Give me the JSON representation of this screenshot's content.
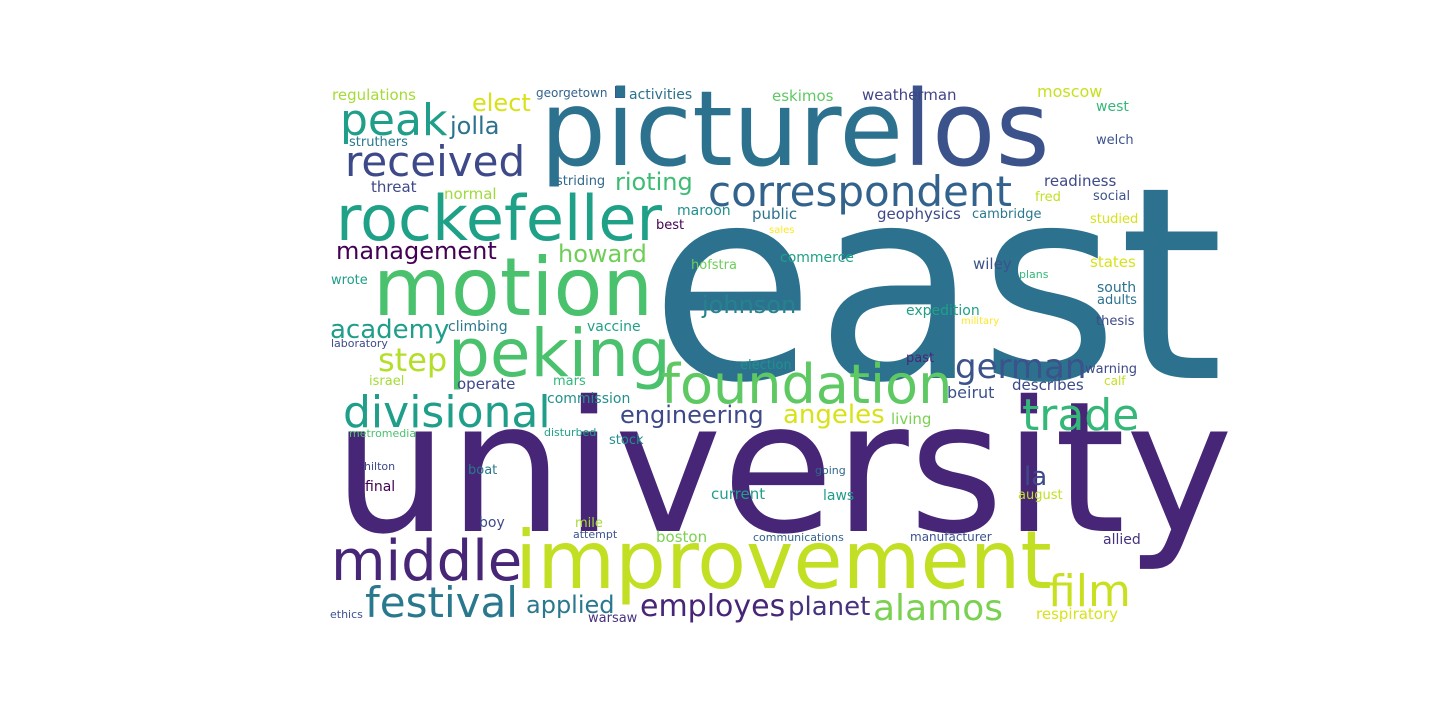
{
  "cloud": {
    "words": [
      {
        "text": "east",
        "color": "#2c728e"
      },
      {
        "text": "university",
        "color": "#482677"
      },
      {
        "text": "picture",
        "color": "#2c728e"
      },
      {
        "text": "los",
        "color": "#3b528b"
      },
      {
        "text": "improvement",
        "color": "#c2df23"
      },
      {
        "text": "motion",
        "color": "#4ac16d"
      },
      {
        "text": "rockefeller",
        "color": "#1fa187"
      },
      {
        "text": "peking",
        "color": "#4ac16d"
      },
      {
        "text": "foundation",
        "color": "#5ec962"
      },
      {
        "text": "middle",
        "color": "#482677"
      },
      {
        "text": "divisional",
        "color": "#1f9e89"
      },
      {
        "text": "correspondent",
        "color": "#33638d"
      },
      {
        "text": "received",
        "color": "#3e4989"
      },
      {
        "text": "peak",
        "color": "#1f9e89"
      },
      {
        "text": "festival",
        "color": "#2a788e"
      },
      {
        "text": "trade",
        "color": "#35b779"
      },
      {
        "text": "film",
        "color": "#c8e020"
      },
      {
        "text": "alamos",
        "color": "#7ad151"
      },
      {
        "text": "german",
        "color": "#3b528b"
      },
      {
        "text": "step",
        "color": "#b5de2b"
      },
      {
        "text": "employes",
        "color": "#482677"
      },
      {
        "text": "angeles",
        "color": "#d8e219"
      },
      {
        "text": "planet",
        "color": "#46327e"
      },
      {
        "text": "engineering",
        "color": "#3e4989"
      },
      {
        "text": "management",
        "color": "#440154"
      },
      {
        "text": "academy",
        "color": "#1f9e89"
      },
      {
        "text": "johnson",
        "color": "#26828e"
      },
      {
        "text": "applied",
        "color": "#2a788e"
      },
      {
        "text": "elect",
        "color": "#d8e219"
      },
      {
        "text": "jolla",
        "color": "#2c728e"
      },
      {
        "text": "rioting",
        "color": "#3dbc74"
      },
      {
        "text": "howard",
        "color": "#6ece58"
      },
      {
        "text": "la",
        "color": "#3e4989"
      },
      {
        "text": "moscow",
        "color": "#c8e020"
      },
      {
        "text": "regulations",
        "color": "#a5db36"
      },
      {
        "text": "georgetown",
        "color": "#33638d"
      },
      {
        "text": "activities",
        "color": "#2c728e"
      },
      {
        "text": "eskimos",
        "color": "#5ec962"
      },
      {
        "text": "weatherman",
        "color": "#414487"
      },
      {
        "text": "west",
        "color": "#35b779"
      },
      {
        "text": "welch",
        "color": "#3b528b"
      },
      {
        "text": "struthers",
        "color": "#2a788e"
      },
      {
        "text": "striding",
        "color": "#31688e"
      },
      {
        "text": "threat",
        "color": "#3e4989"
      },
      {
        "text": "normal",
        "color": "#a0da39"
      },
      {
        "text": "readiness",
        "color": "#3e4989"
      },
      {
        "text": "social",
        "color": "#3b528b"
      },
      {
        "text": "fred",
        "color": "#c2df23"
      },
      {
        "text": "maroon",
        "color": "#21908d"
      },
      {
        "text": "public",
        "color": "#2c728e"
      },
      {
        "text": "geophysics",
        "color": "#3e4989"
      },
      {
        "text": "cambridge",
        "color": "#2a788e"
      },
      {
        "text": "studied",
        "color": "#d8e219"
      },
      {
        "text": "best",
        "color": "#440154"
      },
      {
        "text": "sales",
        "color": "#fde725"
      },
      {
        "text": "hofstra",
        "color": "#6ece58"
      },
      {
        "text": "commerce",
        "color": "#1fa187"
      },
      {
        "text": "wiley",
        "color": "#3b528b"
      },
      {
        "text": "states",
        "color": "#d8e219"
      },
      {
        "text": "wrote",
        "color": "#1f9e89"
      },
      {
        "text": "plans",
        "color": "#35b779"
      },
      {
        "text": "south",
        "color": "#2c728e"
      },
      {
        "text": "adults",
        "color": "#2c728e"
      },
      {
        "text": "expedition",
        "color": "#1fa187"
      },
      {
        "text": "military",
        "color": "#fde725"
      },
      {
        "text": "thesis",
        "color": "#3e4989"
      },
      {
        "text": "climbing",
        "color": "#2a788e"
      },
      {
        "text": "vaccine",
        "color": "#1fa187"
      },
      {
        "text": "laboratory",
        "color": "#3e4989"
      },
      {
        "text": "election",
        "color": "#21908d"
      },
      {
        "text": "past",
        "color": "#482677"
      },
      {
        "text": "israel",
        "color": "#a5db36"
      },
      {
        "text": "operate",
        "color": "#3e4989"
      },
      {
        "text": "mars",
        "color": "#35b779"
      },
      {
        "text": "describes",
        "color": "#3e4989"
      },
      {
        "text": "warning",
        "color": "#3e4989"
      },
      {
        "text": "calf",
        "color": "#c2df23"
      },
      {
        "text": "commission",
        "color": "#21908d"
      },
      {
        "text": "beirut",
        "color": "#3b528b"
      },
      {
        "text": "living",
        "color": "#7ad151"
      },
      {
        "text": "metromedia",
        "color": "#4ac16d"
      },
      {
        "text": "disturbed",
        "color": "#1fa187"
      },
      {
        "text": "stock",
        "color": "#21908d"
      },
      {
        "text": "hilton",
        "color": "#3e4989"
      },
      {
        "text": "boat",
        "color": "#2a788e"
      },
      {
        "text": "going",
        "color": "#31688e"
      },
      {
        "text": "final",
        "color": "#440154"
      },
      {
        "text": "current",
        "color": "#1f9e89"
      },
      {
        "text": "laws",
        "color": "#1f9e89"
      },
      {
        "text": "august",
        "color": "#c2df23"
      },
      {
        "text": "boy",
        "color": "#3e4989"
      },
      {
        "text": "mile",
        "color": "#a5db36"
      },
      {
        "text": "attempt",
        "color": "#3b528b"
      },
      {
        "text": "boston",
        "color": "#7ad151"
      },
      {
        "text": "communications",
        "color": "#33638d"
      },
      {
        "text": "manufacturer",
        "color": "#3b528b"
      },
      {
        "text": "allied",
        "color": "#46327e"
      },
      {
        "text": "ethics",
        "color": "#3b528b"
      },
      {
        "text": "warsaw",
        "color": "#46327e"
      },
      {
        "text": "respiratory",
        "color": "#d8e219"
      }
    ]
  }
}
